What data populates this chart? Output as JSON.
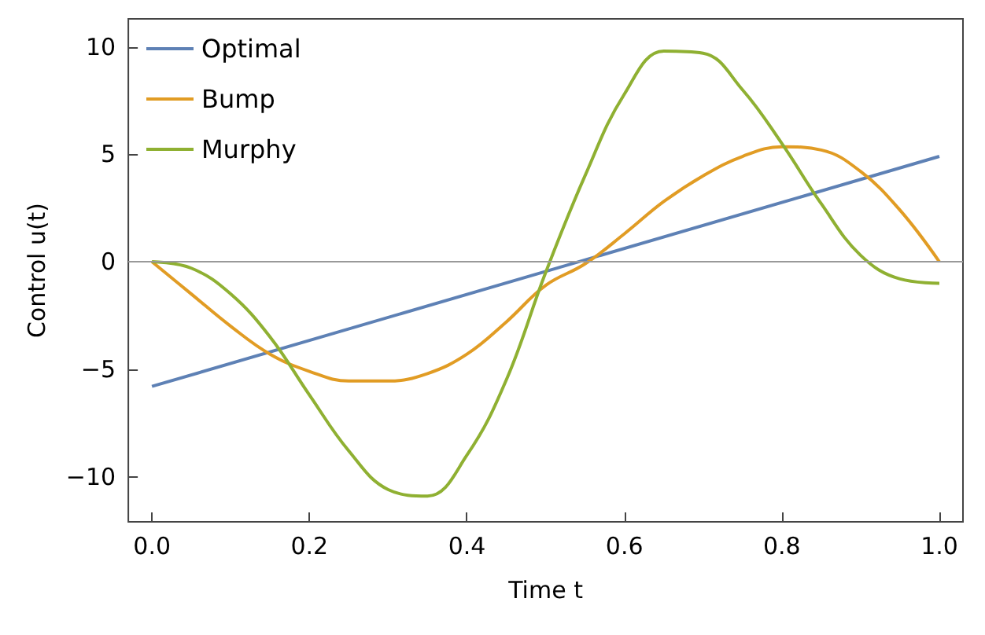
{
  "chart_data": {
    "type": "line",
    "xlabel": "Time t",
    "ylabel": "Control u(t)",
    "legend": "top left",
    "grid": false,
    "marker": "none",
    "line_style": "solid",
    "xlim": [
      -0.03,
      1.03
    ],
    "ylim": [
      -12.1,
      11.3
    ],
    "xticks": [
      {
        "value": 0,
        "label": "0.0"
      },
      {
        "value": 0.2,
        "label": "0.2"
      },
      {
        "value": 0.4,
        "label": "0.4"
      },
      {
        "value": 0.6,
        "label": "0.6"
      },
      {
        "value": 0.8,
        "label": "0.8"
      },
      {
        "value": 1,
        "label": "1.0"
      }
    ],
    "yticks": [
      {
        "value": -10,
        "label": "−10"
      },
      {
        "value": -5,
        "label": "−5"
      },
      0,
      5,
      10
    ],
    "ref_lines": [
      {
        "axis": "y",
        "value": 0,
        "color": "#999999"
      }
    ],
    "x": [
      0,
      0.05,
      0.1,
      0.15,
      0.2,
      0.25,
      0.3,
      0.35,
      0.4,
      0.45,
      0.5,
      0.55,
      0.6,
      0.65,
      0.7,
      0.75,
      0.8,
      0.85,
      0.9,
      0.95,
      1.0
    ],
    "series": [
      {
        "name": "Optimal",
        "color": "#5e81b5",
        "x": [
          0,
          1
        ],
        "values": [
          -5.8,
          4.9
        ]
      },
      {
        "name": "Bump",
        "color": "#e19c24",
        "values": [
          0,
          -1.5,
          -3,
          -4.3,
          -5.1,
          -5.55,
          -5.55,
          -5.2,
          -4.3,
          -2.8,
          -1.1,
          -0.1,
          1.3,
          2.8,
          4,
          4.9,
          5.35,
          5.2,
          4.2,
          2.4,
          0
        ]
      },
      {
        "name": "Murphy",
        "color": "#8fb032",
        "values": [
          0,
          -0.3,
          -1.5,
          -3.5,
          -6.2,
          -8.8,
          -10.6,
          -10.9,
          -9,
          -5.5,
          -0.5,
          4,
          7.8,
          9.8,
          9.7,
          8,
          5.5,
          2.7,
          0.3,
          -0.8,
          -1
        ]
      }
    ]
  }
}
